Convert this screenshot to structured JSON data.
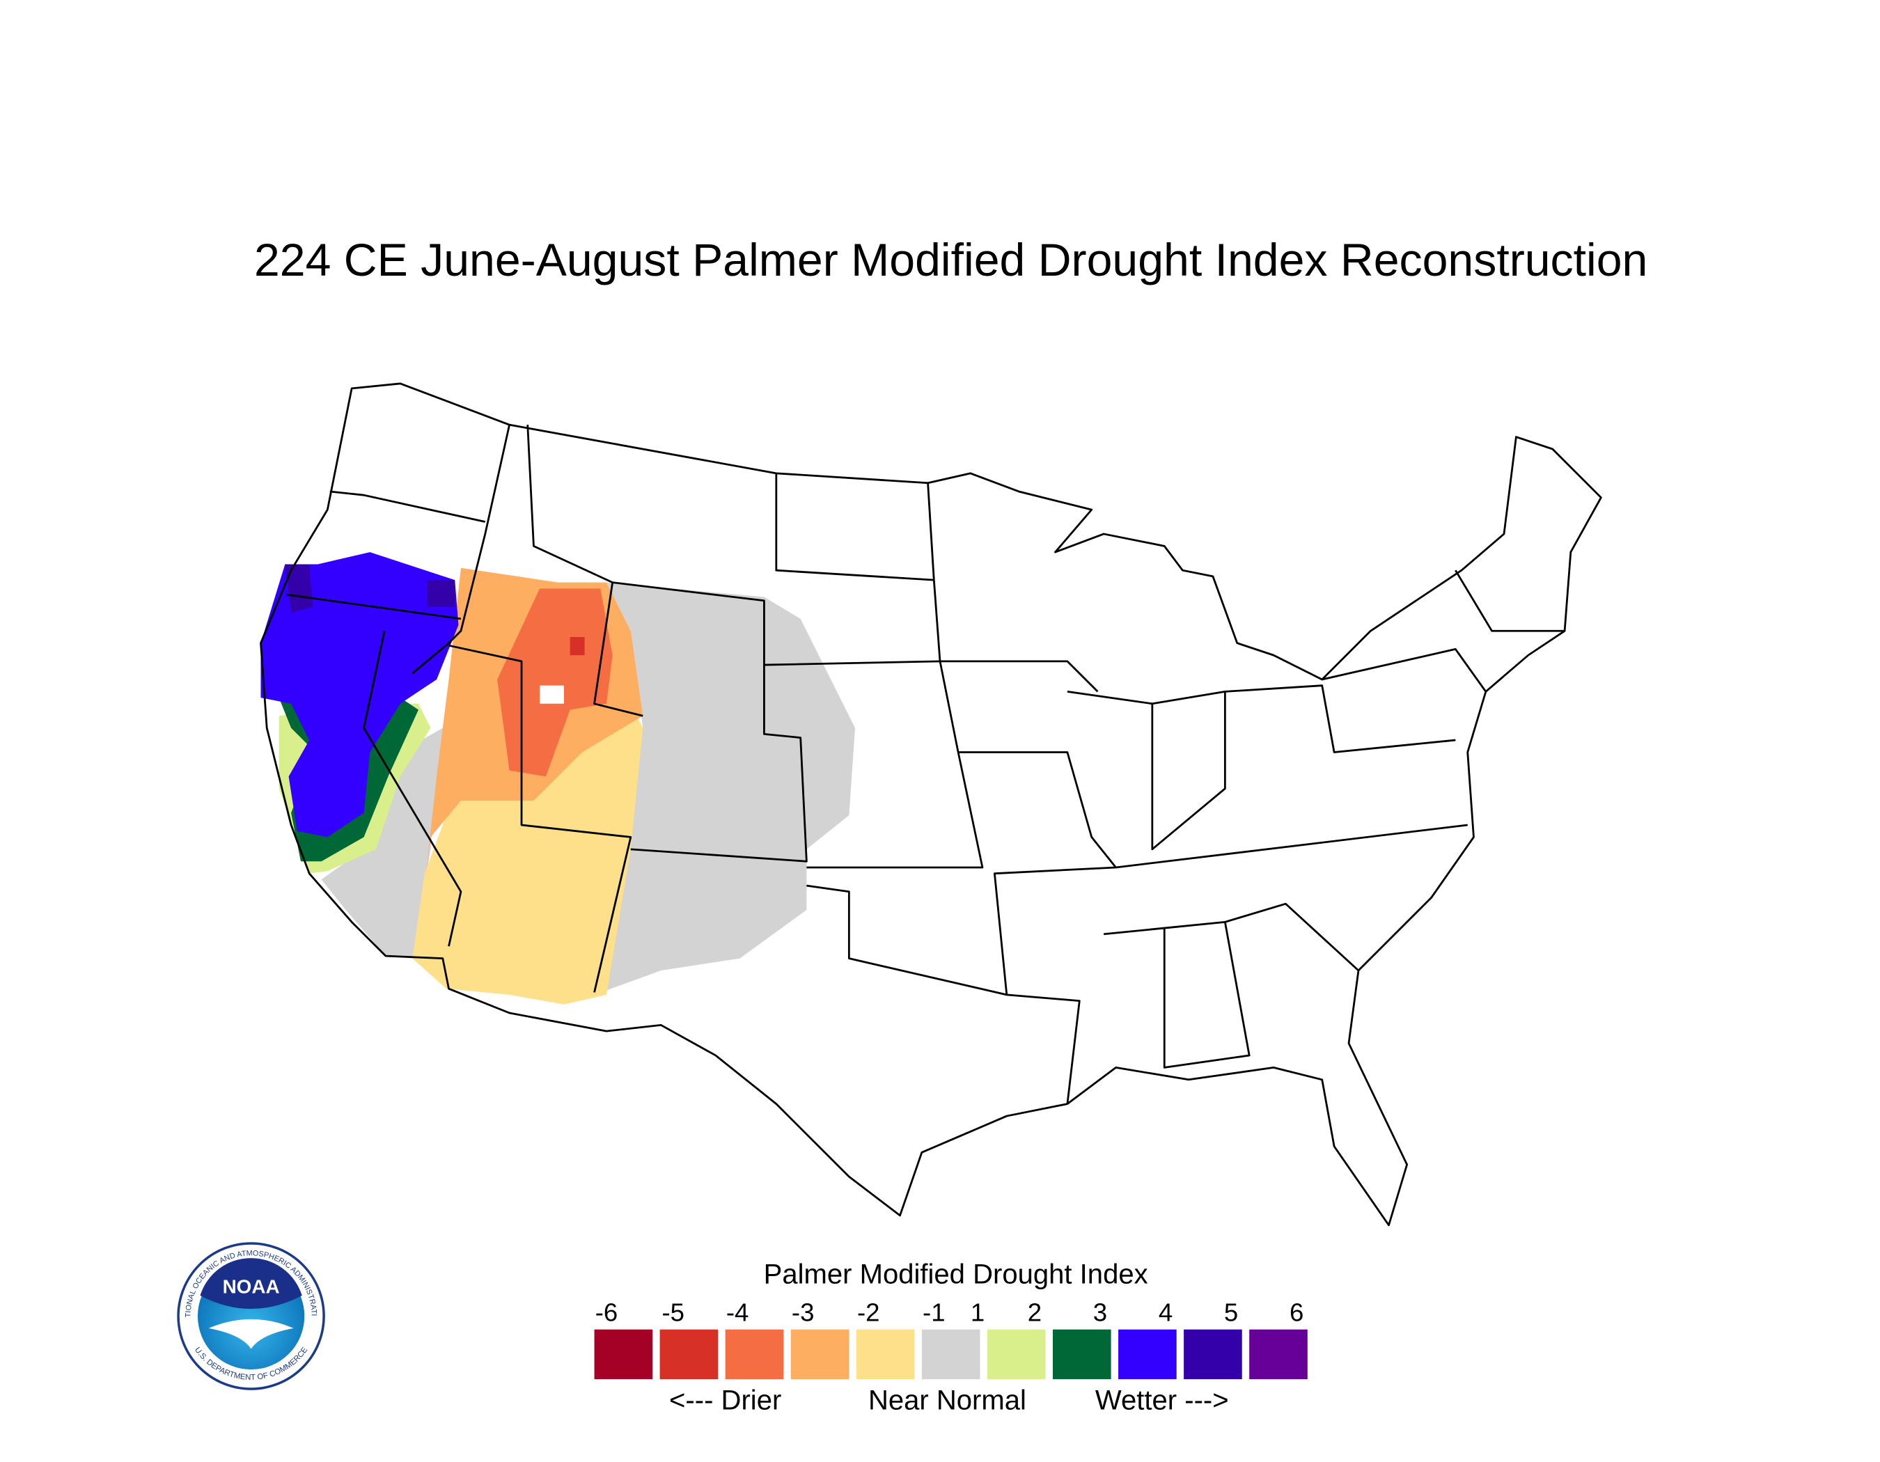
{
  "title": "224 CE  June-August  Palmer Modified Drought Index Reconstruction",
  "legend": {
    "title": "Palmer Modified Drought Index",
    "ticks": [
      -6,
      -5,
      -4,
      -3,
      -2,
      -1,
      1,
      2,
      3,
      4,
      5,
      6
    ],
    "colors": [
      "#a50026",
      "#d73027",
      "#f46d43",
      "#fdae61",
      "#fee08b",
      "#d3d3d3",
      "#d9ef8b",
      "#006837",
      "#3300ff",
      "#3300aa",
      "#660099"
    ],
    "labels": [
      "<--- Drier",
      "Near Normal",
      "Wetter --->"
    ]
  },
  "logo": {
    "name": "NOAA",
    "ring_top": "NATIONAL OCEANIC AND ATMOSPHERIC ADMINISTRATION",
    "ring_bottom": "U.S. DEPARTMENT OF COMMERCE"
  }
}
